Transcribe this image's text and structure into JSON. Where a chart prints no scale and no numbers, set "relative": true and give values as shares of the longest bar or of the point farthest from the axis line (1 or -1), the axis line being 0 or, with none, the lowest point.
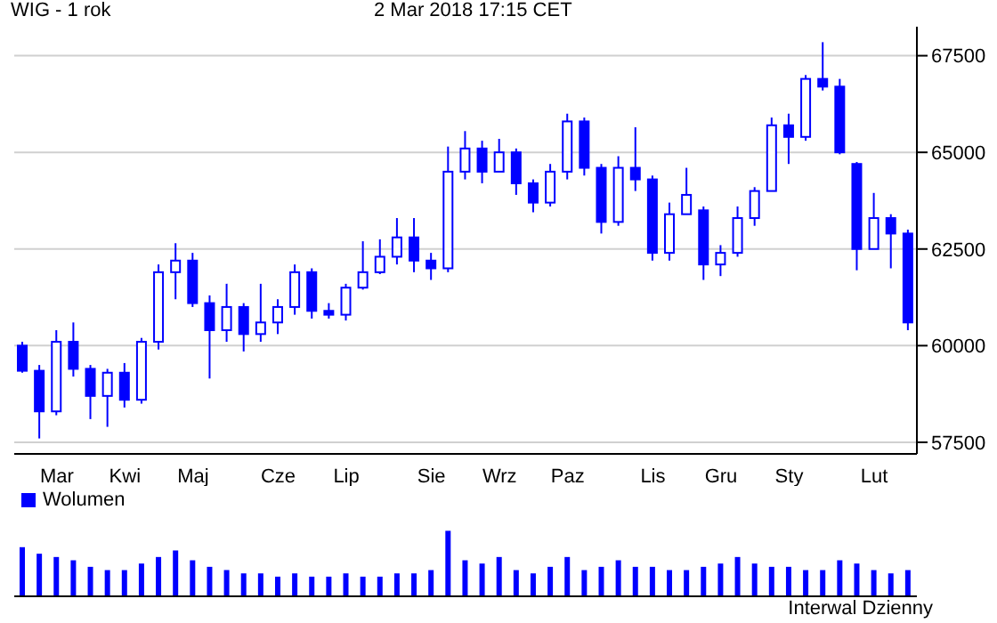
{
  "chart_data": [
    {
      "type": "candlestick",
      "title": "WIG - 1 rok",
      "subtitle": "2 Mar 2018 17:15 CET",
      "color": "#0000ff",
      "categories": [
        null,
        null,
        "Mar",
        null,
        null,
        null,
        "Kwi",
        null,
        null,
        null,
        "Maj",
        null,
        null,
        null,
        null,
        "Cze",
        null,
        null,
        null,
        "Lip",
        null,
        null,
        null,
        null,
        "Sie",
        null,
        null,
        null,
        "Wrz",
        null,
        null,
        null,
        "Paz",
        null,
        null,
        null,
        null,
        "Lis",
        null,
        null,
        null,
        "Gru",
        null,
        null,
        null,
        "Sty",
        null,
        null,
        null,
        null,
        "Lut",
        null,
        null
      ],
      "ohlc": [
        [
          60000,
          60100,
          59300,
          59350
        ],
        [
          59350,
          59500,
          57600,
          58300
        ],
        [
          58300,
          60400,
          58200,
          60100
        ],
        [
          60100,
          60600,
          59200,
          59400
        ],
        [
          59400,
          59500,
          58100,
          58700
        ],
        [
          58700,
          59400,
          57900,
          59300
        ],
        [
          59300,
          59550,
          58400,
          58600
        ],
        [
          58600,
          60200,
          58500,
          60100
        ],
        [
          60100,
          62100,
          59900,
          61900
        ],
        [
          61900,
          62650,
          61200,
          62200
        ],
        [
          62200,
          62400,
          61000,
          61100
        ],
        [
          61100,
          61300,
          59150,
          60400
        ],
        [
          60400,
          61600,
          60100,
          61000
        ],
        [
          61000,
          61100,
          59850,
          60300
        ],
        [
          60300,
          61600,
          60100,
          60600
        ],
        [
          60600,
          61200,
          60300,
          61000
        ],
        [
          61000,
          62100,
          60800,
          61900
        ],
        [
          61900,
          62000,
          60700,
          60900
        ],
        [
          60900,
          61100,
          60700,
          60800
        ],
        [
          60800,
          61600,
          60650,
          61500
        ],
        [
          61500,
          62700,
          61450,
          61900
        ],
        [
          61900,
          62750,
          61850,
          62300
        ],
        [
          62300,
          63300,
          62100,
          62800
        ],
        [
          62800,
          63300,
          61900,
          62200
        ],
        [
          62200,
          62400,
          61700,
          62000
        ],
        [
          62000,
          65150,
          61900,
          64500
        ],
        [
          64500,
          65550,
          64300,
          65100
        ],
        [
          65100,
          65300,
          64200,
          64500
        ],
        [
          64500,
          65350,
          64500,
          65000
        ],
        [
          65000,
          65100,
          63900,
          64200
        ],
        [
          64200,
          64300,
          63450,
          63700
        ],
        [
          63700,
          64700,
          63600,
          64500
        ],
        [
          64500,
          66000,
          64300,
          65800
        ],
        [
          65800,
          65900,
          64400,
          64600
        ],
        [
          64600,
          64700,
          62900,
          63200
        ],
        [
          63200,
          64900,
          63100,
          64600
        ],
        [
          64600,
          65650,
          64000,
          64300
        ],
        [
          64300,
          64400,
          62200,
          62400
        ],
        [
          62400,
          63700,
          62200,
          63400
        ],
        [
          63400,
          64600,
          63400,
          63900
        ],
        [
          63500,
          63600,
          61700,
          62100
        ],
        [
          62100,
          62600,
          61800,
          62400
        ],
        [
          62400,
          63600,
          62300,
          63300
        ],
        [
          63300,
          64100,
          63100,
          64000
        ],
        [
          64000,
          65900,
          64000,
          65700
        ],
        [
          65700,
          66000,
          64700,
          65400
        ],
        [
          65400,
          67000,
          65300,
          66900
        ],
        [
          66900,
          67850,
          66600,
          66700
        ],
        [
          66700,
          66900,
          64950,
          65000
        ],
        [
          64700,
          64750,
          61950,
          62500
        ],
        [
          62500,
          63950,
          62500,
          63300
        ],
        [
          63300,
          63400,
          62000,
          62900
        ],
        [
          62900,
          63000,
          60400,
          60600
        ]
      ],
      "ylim": [
        57200,
        68250
      ],
      "yticks": [
        57500,
        60000,
        62500,
        65000,
        67500
      ],
      "grid": "y"
    },
    {
      "type": "bar",
      "relative": true,
      "legend": "top left",
      "annotations": [
        "Interwal Dzienny"
      ],
      "categories": [
        null,
        null,
        null,
        null,
        null,
        null,
        null,
        null,
        null,
        null,
        null,
        null,
        null,
        null,
        null,
        null,
        null,
        null,
        null,
        null,
        null,
        null,
        null,
        null,
        null,
        null,
        null,
        null,
        null,
        null,
        null,
        null,
        null,
        null,
        null,
        null,
        null,
        null,
        null,
        null,
        null,
        null,
        null,
        null,
        null,
        null,
        null,
        null,
        null,
        null,
        null,
        null,
        null
      ],
      "series": [
        {
          "name": "Wolumen",
          "color": "#0000ff",
          "values": [
            0.75,
            0.65,
            0.6,
            0.55,
            0.45,
            0.4,
            0.4,
            0.5,
            0.6,
            0.7,
            0.55,
            0.45,
            0.4,
            0.35,
            0.35,
            0.3,
            0.35,
            0.3,
            0.3,
            0.35,
            0.3,
            0.3,
            0.35,
            0.35,
            0.4,
            1.0,
            0.55,
            0.5,
            0.6,
            0.4,
            0.35,
            0.45,
            0.6,
            0.4,
            0.45,
            0.55,
            0.45,
            0.45,
            0.4,
            0.4,
            0.45,
            0.5,
            0.6,
            0.5,
            0.45,
            0.45,
            0.4,
            0.4,
            0.55,
            0.5,
            0.4,
            0.35,
            0.4
          ]
        }
      ]
    }
  ]
}
